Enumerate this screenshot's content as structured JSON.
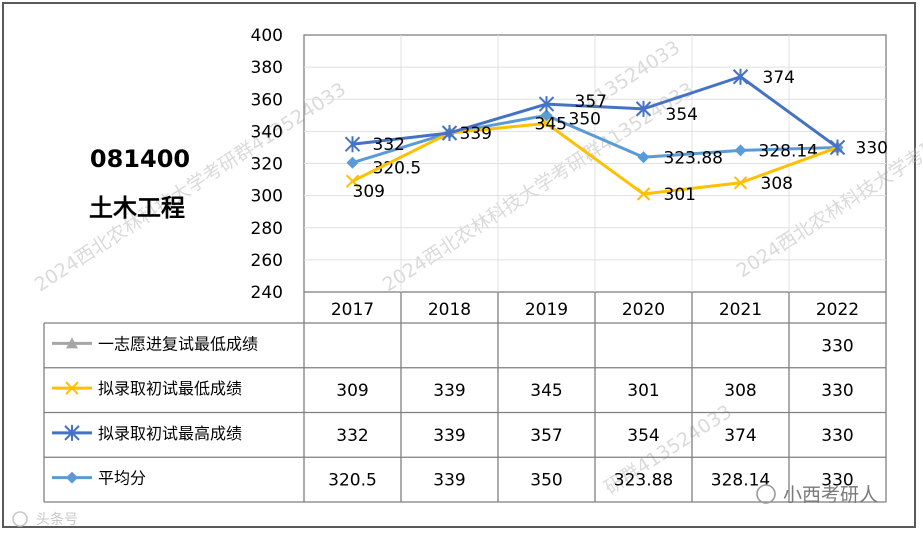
{
  "chart_data": {
    "type": "line",
    "program_code": "081400",
    "program_name": "土木工程",
    "categories": [
      "2017",
      "2018",
      "2019",
      "2020",
      "2021",
      "2022"
    ],
    "ylim": [
      240,
      400
    ],
    "yticks": [
      240,
      260,
      280,
      300,
      320,
      340,
      360,
      380,
      400
    ],
    "grid": true,
    "legend": "table-left",
    "series": [
      {
        "name": "一志愿进复试最低成绩",
        "values": [
          null,
          null,
          null,
          null,
          null,
          330
        ],
        "table": [
          "",
          "",
          "",
          "",
          "",
          "330"
        ],
        "color": "#a6a6a6",
        "marker": "triangle",
        "labels": [
          "",
          "",
          "",
          "",
          "",
          ""
        ]
      },
      {
        "name": "拟录取初试最低成绩",
        "values": [
          309,
          339,
          345,
          301,
          308,
          330
        ],
        "table": [
          "309",
          "339",
          "345",
          "301",
          "308",
          "330"
        ],
        "color": "#ffc000",
        "marker": "x",
        "labels": [
          "309",
          "",
          "345",
          "301",
          "308",
          ""
        ]
      },
      {
        "name": "拟录取初试最高成绩",
        "values": [
          332,
          339,
          357,
          354,
          374,
          330
        ],
        "table": [
          "332",
          "339",
          "357",
          "354",
          "374",
          "330"
        ],
        "color": "#4472c4",
        "marker": "star",
        "labels": [
          "332",
          "339",
          "357",
          "354",
          "374",
          "330"
        ]
      },
      {
        "name": "平均分",
        "values": [
          320.5,
          339,
          350,
          323.88,
          328.14,
          330
        ],
        "table": [
          "320.5",
          "339",
          "350",
          "323.88",
          "328.14",
          "330"
        ],
        "color": "#5b9bd5",
        "marker": "diamond",
        "labels": [
          "320.5",
          "",
          "350",
          "323.88",
          "328.14",
          ""
        ]
      }
    ]
  },
  "watermarks": [
    "2024西北农林科技大学考研群413524033",
    "2024西北农林科技大学考研群413524033",
    "2024西北农林科技大学考研群413524033",
    "413524033",
    "研群413524033"
  ],
  "footer": {
    "source_left": "头条号",
    "source_right": "小西考研人"
  }
}
